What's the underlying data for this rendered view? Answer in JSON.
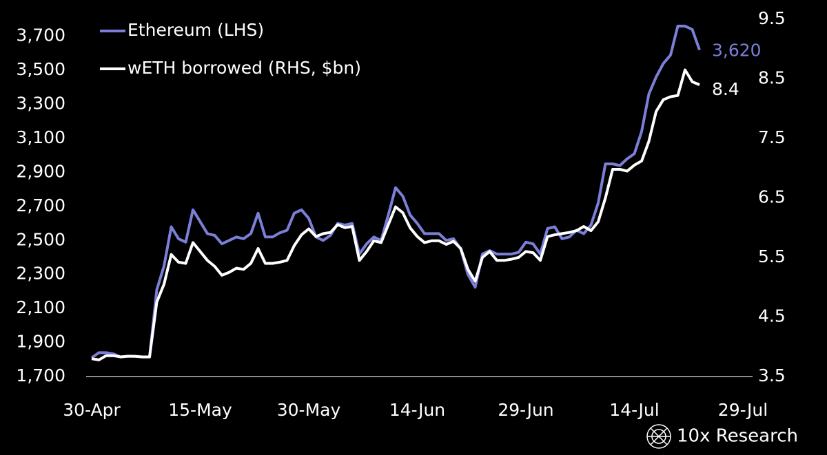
{
  "chart_data": {
    "type": "line",
    "categories": [
      "30-Apr",
      null,
      null,
      null,
      null,
      null,
      null,
      null,
      null,
      null,
      null,
      null,
      null,
      null,
      null,
      "15-May",
      null,
      null,
      null,
      null,
      null,
      null,
      null,
      null,
      null,
      null,
      null,
      null,
      null,
      null,
      "30-May",
      null,
      null,
      null,
      null,
      null,
      null,
      null,
      null,
      null,
      null,
      null,
      null,
      null,
      null,
      "14-Jun",
      null,
      null,
      null,
      null,
      null,
      null,
      null,
      null,
      null,
      null,
      null,
      null,
      null,
      null,
      "29-Jun",
      null,
      null,
      null,
      null,
      null,
      null,
      null,
      null,
      null,
      null,
      null,
      null,
      null,
      null,
      "14-Jul",
      null,
      null,
      null,
      null,
      null,
      null,
      null,
      null,
      null,
      null,
      null,
      null,
      null,
      null,
      "29-Jul"
    ],
    "series": [
      {
        "name": "Ethereum (LHS)",
        "color": "#7b7fd8",
        "axis": "y",
        "values": [
          1810,
          1840,
          1840,
          1833,
          1815,
          1820,
          1818,
          1815,
          1815,
          2210,
          2350,
          2580,
          2510,
          2490,
          2680,
          2610,
          2540,
          2530,
          2480,
          2500,
          2520,
          2510,
          2540,
          2660,
          2520,
          2520,
          2545,
          2560,
          2660,
          2680,
          2630,
          2520,
          2500,
          2530,
          2600,
          2590,
          2600,
          2420,
          2480,
          2520,
          2500,
          2650,
          2810,
          2760,
          2650,
          2600,
          2540,
          2540,
          2540,
          2500,
          2510,
          2450,
          2300,
          2225,
          2420,
          2440,
          2420,
          2420,
          2420,
          2430,
          2490,
          2480,
          2420,
          2570,
          2580,
          2510,
          2520,
          2560,
          2540,
          2590,
          2720,
          2950,
          2950,
          2940,
          2980,
          3010,
          3140,
          3360,
          3460,
          3540,
          3590,
          3760,
          3760,
          3740,
          3620,
          null,
          null,
          null,
          null,
          null,
          null
        ],
        "value_labels": [
          null,
          null,
          null,
          null,
          null,
          null,
          null,
          null,
          null,
          null,
          null,
          null,
          null,
          null,
          null,
          null,
          null,
          null,
          null,
          null,
          null,
          null,
          null,
          null,
          null,
          null,
          null,
          null,
          null,
          null,
          null,
          null,
          null,
          null,
          null,
          null,
          null,
          null,
          null,
          null,
          null,
          null,
          null,
          null,
          null,
          null,
          null,
          null,
          null,
          null,
          null,
          null,
          null,
          null,
          null,
          null,
          null,
          null,
          null,
          null,
          null,
          null,
          null,
          null,
          null,
          null,
          null,
          null,
          null,
          null,
          null,
          null,
          null,
          null,
          null,
          null,
          null,
          null,
          null,
          null,
          null,
          null,
          null,
          null,
          "3,620",
          null,
          null,
          null,
          null,
          null,
          null
        ]
      },
      {
        "name": "wETH borrowed (RHS, $bn)",
        "color": "#ffffff",
        "axis": "y2",
        "values": [
          3.8,
          3.78,
          3.85,
          3.85,
          3.83,
          3.84,
          3.84,
          3.83,
          3.83,
          4.75,
          5.05,
          5.55,
          5.42,
          5.4,
          5.75,
          5.6,
          5.45,
          5.35,
          5.2,
          5.25,
          5.32,
          5.3,
          5.4,
          5.65,
          5.4,
          5.4,
          5.42,
          5.45,
          5.7,
          5.88,
          5.98,
          5.85,
          5.9,
          5.92,
          6.05,
          6.0,
          6.02,
          5.45,
          5.6,
          5.78,
          5.75,
          6.05,
          6.35,
          6.25,
          6.0,
          5.85,
          5.75,
          5.78,
          5.78,
          5.72,
          5.77,
          5.65,
          5.3,
          5.1,
          5.5,
          5.6,
          5.45,
          5.45,
          5.47,
          5.5,
          5.6,
          5.58,
          5.45,
          5.85,
          5.88,
          5.9,
          5.92,
          5.95,
          6.02,
          5.95,
          6.1,
          6.5,
          6.98,
          6.98,
          6.95,
          7.05,
          7.12,
          7.45,
          7.95,
          8.15,
          8.2,
          8.22,
          8.65,
          8.45,
          8.4,
          null,
          null,
          null,
          null,
          null,
          null
        ]
      }
    ],
    "ylim": [
      1700,
      3800
    ],
    "yticks": [
      {
        "value": 1700,
        "label": "1,700"
      },
      {
        "value": 1900,
        "label": "1,900"
      },
      {
        "value": 2100,
        "label": "2,100"
      },
      {
        "value": 2300,
        "label": "2,300"
      },
      {
        "value": 2500,
        "label": "2,500"
      },
      {
        "value": 2700,
        "label": "2,700"
      },
      {
        "value": 2900,
        "label": "2,900"
      },
      {
        "value": 3100,
        "label": "3,100"
      },
      {
        "value": 3300,
        "label": "3,300"
      },
      {
        "value": 3500,
        "label": "3,500"
      },
      {
        "value": 3700,
        "label": "3,700"
      }
    ],
    "y2lim": [
      3.5,
      9.5
    ],
    "y2ticks": [
      3.5,
      4.5,
      5.5,
      6.5,
      7.5,
      8.5,
      9.5
    ],
    "grid": false,
    "legend": "upper left",
    "watermark": "10x Research"
  }
}
